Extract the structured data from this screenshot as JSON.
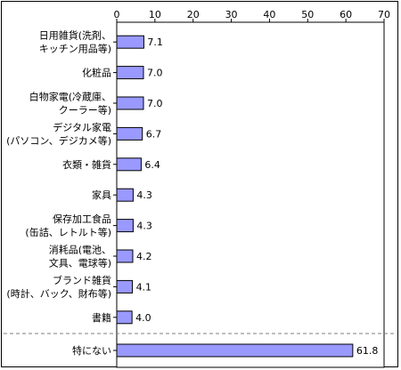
{
  "chart_data": {
    "type": "bar",
    "orientation": "horizontal",
    "xlim": [
      0,
      70
    ],
    "xticks": [
      "0",
      "10",
      "20",
      "30",
      "40",
      "50",
      "60",
      "70"
    ],
    "grid": false,
    "legend": "none",
    "bar_color": "#9999ff",
    "categories": [
      [
        "日用雑貨(洗剤、",
        "キッチン用品等)"
      ],
      [
        "化粧品"
      ],
      [
        "白物家電(冷蔵庫、",
        "クーラー等)"
      ],
      [
        "デジタル家電",
        "(パソコン、デジカメ等)"
      ],
      [
        "衣類・雑貨"
      ],
      [
        "家具"
      ],
      [
        "保存加工食品",
        "(缶詰、レトルト等)"
      ],
      [
        "消耗品(電池、",
        "文具、電球等)"
      ],
      [
        "ブランド雑貨",
        "(時計、バック、財布等)"
      ],
      [
        "書籍"
      ],
      [
        "特にない"
      ]
    ],
    "values": [
      7.1,
      7.0,
      7.0,
      6.7,
      6.4,
      4.3,
      4.3,
      4.2,
      4.1,
      4.0,
      61.8
    ],
    "value_labels": [
      "7.1",
      "7.0",
      "7.0",
      "6.7",
      "6.4",
      "4.3",
      "4.3",
      "4.2",
      "4.1",
      "4.0",
      "61.8"
    ],
    "separator_before_last": true
  }
}
